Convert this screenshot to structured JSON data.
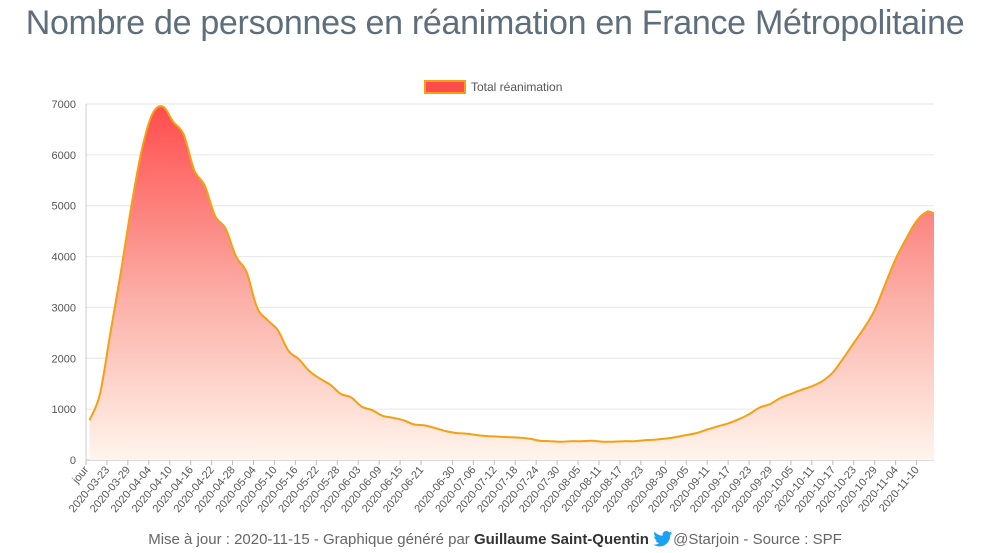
{
  "page": {
    "title": "Nombre de personnes en réanimation en France Métropolitaine",
    "footer": {
      "prefix": "Mise à jour : 2020-11-15 - Graphique généré par ",
      "author": "Guillaume Saint-Quentin",
      "handle": "@Starjoin",
      "suffix": " - Source : SPF"
    }
  },
  "colors": {
    "line": "#f5a010",
    "fill_top": "#ff4d4d",
    "fill_bottom": "#fff5ec",
    "grid": "#e6e6e6",
    "twitter": "#1da1f2"
  },
  "chart_data": {
    "type": "area",
    "legend": {
      "label": "Total réanimation",
      "position": "top"
    },
    "ylim": [
      0,
      7000
    ],
    "y_ticks": [
      0,
      1000,
      2000,
      3000,
      4000,
      5000,
      6000,
      7000
    ],
    "x_tick_labels": [
      "jour",
      "2020-03-23",
      "2020-03-29",
      "2020-04-04",
      "2020-04-10",
      "2020-04-16",
      "2020-04-22",
      "2020-04-28",
      "2020-05-04",
      "2020-05-10",
      "2020-05-16",
      "2020-05-22",
      "2020-05-28",
      "2020-06-03",
      "2020-06-09",
      "2020-06-15",
      "2020-06-21",
      "2020-06-30",
      "2020-07-06",
      "2020-07-12",
      "2020-07-18",
      "2020-07-24",
      "2020-07-30",
      "2020-08-05",
      "2020-08-11",
      "2020-08-17",
      "2020-08-23",
      "2020-08-30",
      "2020-09-05",
      "2020-09-11",
      "2020-09-17",
      "2020-09-23",
      "2020-09-29",
      "2020-10-05",
      "2020-10-11",
      "2020-10-17",
      "2020-10-23",
      "2020-10-29",
      "2020-11-04",
      "2020-11-10"
    ],
    "series": [
      {
        "name": "Total réanimation",
        "x": [
          "2020-03-18",
          "2020-03-21",
          "2020-03-24",
          "2020-03-27",
          "2020-03-30",
          "2020-04-02",
          "2020-04-05",
          "2020-04-08",
          "2020-04-11",
          "2020-04-14",
          "2020-04-17",
          "2020-04-20",
          "2020-04-23",
          "2020-04-26",
          "2020-04-29",
          "2020-05-02",
          "2020-05-05",
          "2020-05-08",
          "2020-05-11",
          "2020-05-14",
          "2020-05-17",
          "2020-05-20",
          "2020-05-23",
          "2020-05-26",
          "2020-05-29",
          "2020-06-01",
          "2020-06-04",
          "2020-06-07",
          "2020-06-10",
          "2020-06-13",
          "2020-06-16",
          "2020-06-19",
          "2020-06-22",
          "2020-06-25",
          "2020-06-28",
          "2020-07-01",
          "2020-07-04",
          "2020-07-07",
          "2020-07-10",
          "2020-07-13",
          "2020-07-16",
          "2020-07-19",
          "2020-07-22",
          "2020-07-25",
          "2020-07-28",
          "2020-07-31",
          "2020-08-03",
          "2020-08-06",
          "2020-08-09",
          "2020-08-12",
          "2020-08-15",
          "2020-08-18",
          "2020-08-21",
          "2020-08-24",
          "2020-08-27",
          "2020-08-30",
          "2020-09-02",
          "2020-09-05",
          "2020-09-08",
          "2020-09-11",
          "2020-09-14",
          "2020-09-17",
          "2020-09-20",
          "2020-09-23",
          "2020-09-26",
          "2020-09-29",
          "2020-10-02",
          "2020-10-05",
          "2020-10-08",
          "2020-10-11",
          "2020-10-14",
          "2020-10-17",
          "2020-10-20",
          "2020-10-23",
          "2020-10-26",
          "2020-10-29",
          "2020-11-01",
          "2020-11-04",
          "2020-11-07",
          "2020-11-10",
          "2020-11-13",
          "2020-11-15"
        ],
        "values": [
          780,
          1300,
          2500,
          3700,
          5000,
          6100,
          6800,
          6950,
          6650,
          6400,
          5700,
          5400,
          4800,
          4550,
          4000,
          3700,
          3000,
          2750,
          2550,
          2150,
          1980,
          1750,
          1600,
          1480,
          1300,
          1230,
          1050,
          980,
          870,
          830,
          780,
          700,
          680,
          630,
          570,
          530,
          520,
          490,
          470,
          460,
          450,
          440,
          420,
          380,
          370,
          360,
          370,
          370,
          380,
          360,
          360,
          370,
          370,
          390,
          400,
          420,
          450,
          490,
          530,
          600,
          660,
          720,
          800,
          900,
          1030,
          1100,
          1220,
          1300,
          1380,
          1450,
          1550,
          1720,
          2000,
          2300,
          2600,
          2950,
          3450,
          3950,
          4350,
          4700,
          4880,
          4850
        ]
      }
    ]
  }
}
